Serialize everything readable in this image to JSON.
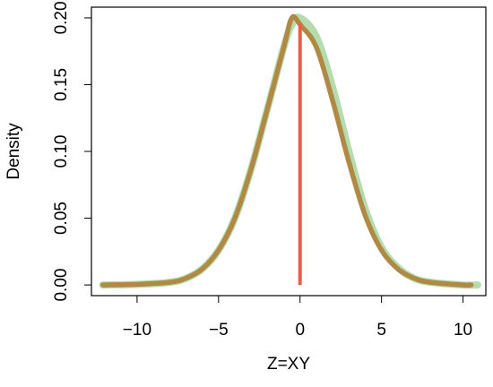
{
  "chart_data": {
    "type": "line",
    "title": "",
    "xlabel": "Z=XY",
    "ylabel": "Density",
    "xlim": [
      -12.8,
      11.4
    ],
    "ylim": [
      -0.008,
      0.208
    ],
    "x_ticks": [
      -10,
      -5,
      0,
      5,
      10
    ],
    "x_tick_labels": [
      "−10",
      "−5",
      "0",
      "5",
      "10"
    ],
    "y_ticks": [
      0.0,
      0.05,
      0.1,
      0.15,
      0.2
    ],
    "y_tick_labels": [
      "0.00",
      "0.05",
      "0.10",
      "0.15",
      "0.20"
    ],
    "grid": false,
    "legend": "none",
    "series": [
      {
        "color": "#b5dcae",
        "x": [
          -12.1,
          -10.0,
          -8.0,
          -7.0,
          -6.0,
          -5.0,
          -4.0,
          -3.0,
          -2.0,
          -1.0,
          -0.5,
          0.0,
          1.0,
          2.0,
          3.0,
          4.0,
          5.0,
          6.0,
          7.0,
          8.0,
          10.0,
          10.9
        ],
        "y": [
          0.0,
          0.0005,
          0.002,
          0.005,
          0.012,
          0.026,
          0.05,
          0.087,
          0.132,
          0.178,
          0.195,
          0.2,
          0.186,
          0.148,
          0.1,
          0.057,
          0.028,
          0.013,
          0.005,
          0.002,
          0.0,
          0.0
        ]
      },
      {
        "color": "#b08a45",
        "x": [
          -12.1,
          -10.0,
          -8.0,
          -7.0,
          -6.0,
          -5.0,
          -4.0,
          -3.0,
          -2.0,
          -1.0,
          -0.5,
          0.0,
          1.0,
          2.0,
          3.0,
          4.0,
          5.0,
          6.0,
          7.0,
          8.0,
          10.0,
          10.5
        ],
        "y": [
          0.0,
          0.0005,
          0.002,
          0.005,
          0.012,
          0.026,
          0.05,
          0.087,
          0.132,
          0.178,
          0.2,
          0.195,
          0.178,
          0.138,
          0.092,
          0.052,
          0.026,
          0.012,
          0.005,
          0.002,
          0.0,
          0.0
        ]
      }
    ],
    "vline": {
      "x": 0,
      "y_from": 0.0,
      "y_to": 0.196,
      "color": "#e8604c"
    }
  }
}
